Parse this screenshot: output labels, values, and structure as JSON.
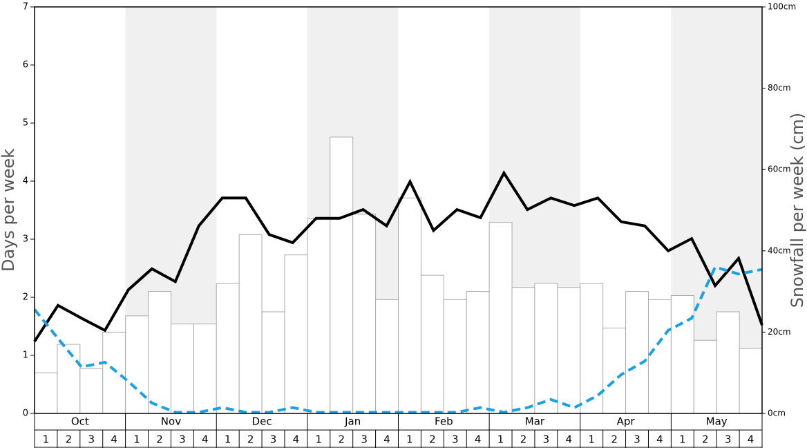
{
  "chart_data": {
    "type": "bar-line",
    "ylabel": "Days per week",
    "y2label": "Snowfall per week (cm)",
    "months": [
      "Oct",
      "Nov",
      "Dec",
      "Jan",
      "Feb",
      "Mar",
      "Apr",
      "May"
    ],
    "categories": [
      "1",
      "2",
      "3",
      "4",
      "1",
      "2",
      "3",
      "4",
      "1",
      "2",
      "3",
      "4",
      "1",
      "2",
      "3",
      "4",
      "1",
      "2",
      "3",
      "4",
      "1",
      "2",
      "3",
      "4",
      "1",
      "2",
      "3",
      "4",
      "1",
      "2",
      "3",
      "4"
    ],
    "ylim": [
      0,
      7
    ],
    "yticks": [
      0,
      1,
      2,
      3,
      4,
      5,
      6,
      7
    ],
    "y2lim": [
      0,
      100
    ],
    "y2ticks": [
      {
        "value": 0,
        "label": "0cm"
      },
      {
        "value": 20,
        "label": "20cm"
      },
      {
        "value": 40,
        "label": "40cm"
      },
      {
        "value": 60,
        "label": "60cm"
      },
      {
        "value": 80,
        "label": "80cm"
      },
      {
        "value": 100,
        "label": "100cm"
      }
    ],
    "series": [
      {
        "type": "bar",
        "axis": "y2",
        "color": "#ffffff",
        "values": [
          10,
          17,
          11,
          20,
          24,
          30,
          22,
          22,
          32,
          44,
          25,
          39,
          48,
          68,
          49,
          28,
          53,
          34,
          28,
          30,
          47,
          31,
          32,
          31,
          32,
          21,
          30,
          28,
          29,
          18,
          25,
          16
        ]
      },
      {
        "type": "line",
        "color": "#000000",
        "values": [
          1.24,
          1.86,
          1.64,
          1.43,
          2.13,
          2.49,
          2.27,
          3.23,
          3.71,
          3.71,
          3.08,
          2.94,
          3.36,
          3.36,
          3.51,
          3.23,
          3.99,
          3.15,
          3.51,
          3.37,
          4.14,
          3.51,
          3.71,
          3.58,
          3.71,
          3.3,
          3.23,
          2.8,
          3.01,
          2.2,
          2.67,
          1.52
        ]
      },
      {
        "type": "line",
        "color": "#1ba1e2",
        "dashed": true,
        "values": [
          1.79,
          1.29,
          0.8,
          0.88,
          0.55,
          0.18,
          0.02,
          0.02,
          0.1,
          0.02,
          0.02,
          0.1,
          0.02,
          0.02,
          0.02,
          0.02,
          0.02,
          0.02,
          0.02,
          0.1,
          0.02,
          0.1,
          0.24,
          0.1,
          0.31,
          0.67,
          0.9,
          1.43,
          1.64,
          2.52,
          2.4,
          2.48
        ]
      }
    ]
  }
}
